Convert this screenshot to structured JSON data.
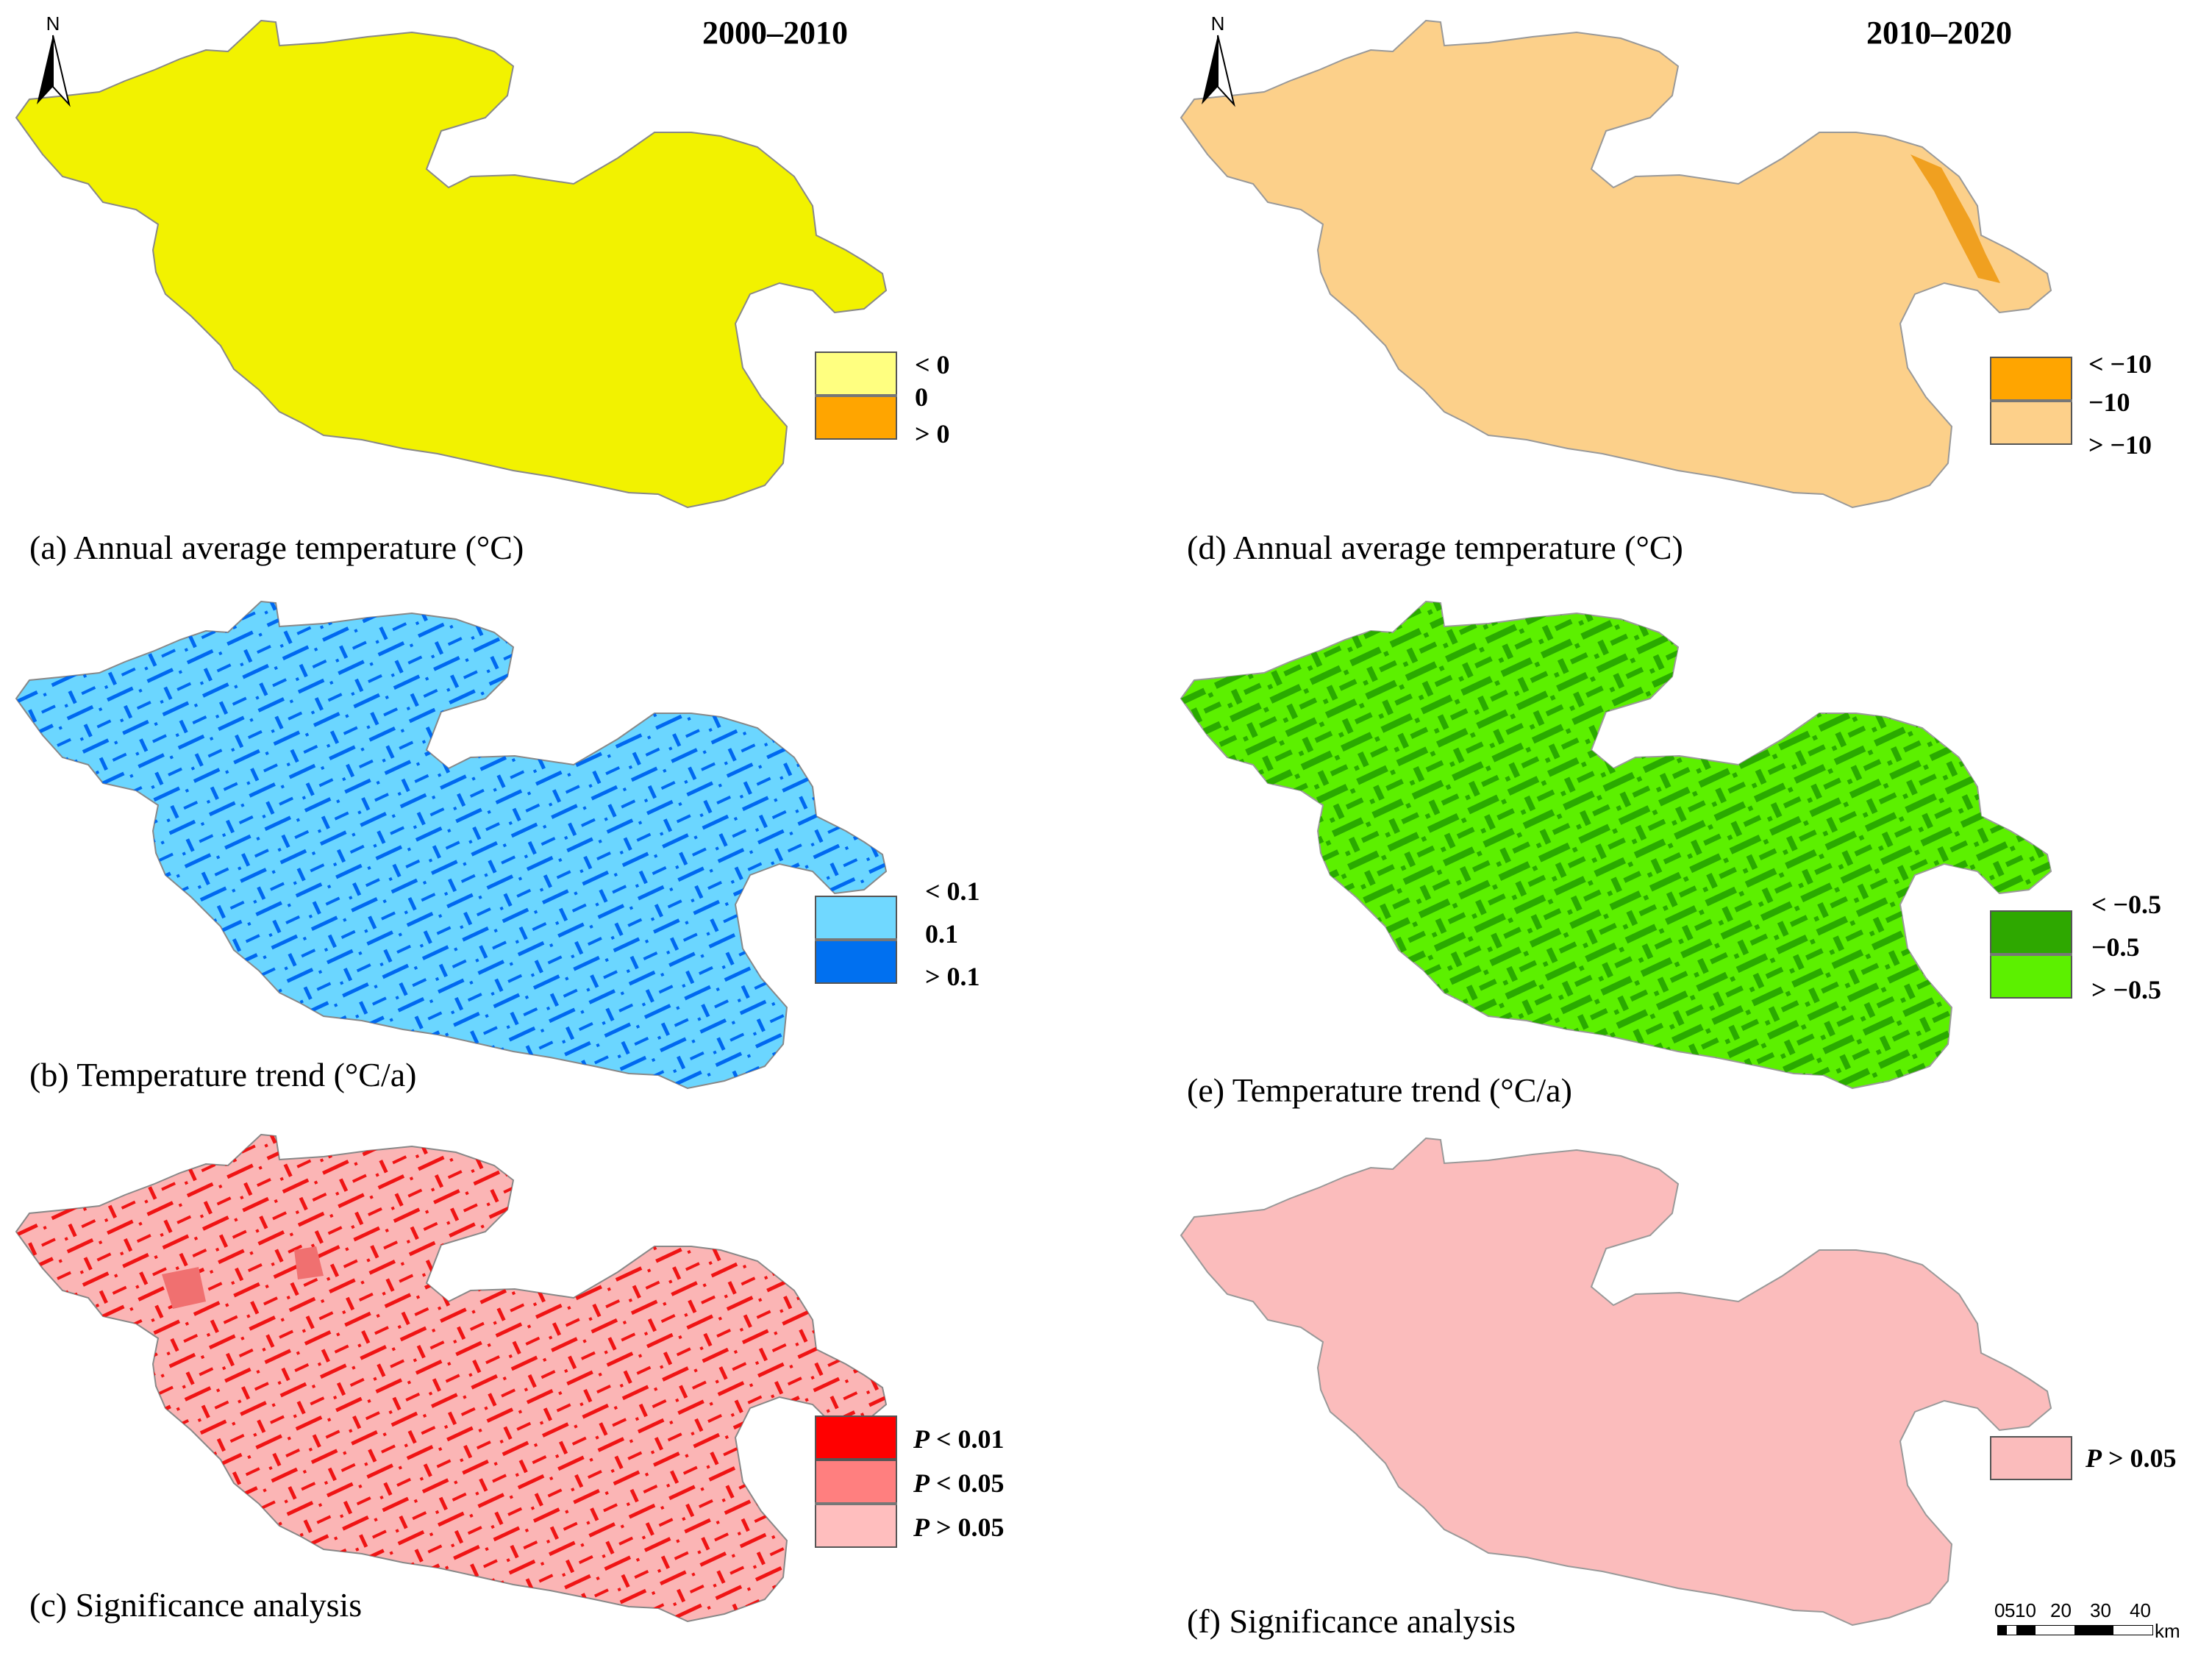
{
  "periods": {
    "left": "2000–2010",
    "right": "2010–2020"
  },
  "north_arrow": {
    "letter": "N"
  },
  "panels": [
    {
      "id": "a",
      "caption": "(a) Annual average temperature (°C)",
      "fill": "#f2f200",
      "legend": {
        "boxes": [
          "#ffff80",
          "#ffa500"
        ],
        "labels": [
          "< 0",
          "0",
          "> 0"
        ]
      }
    },
    {
      "id": "b",
      "caption": "(b) Temperature trend (°C/a)",
      "fill": "#6bd6ff",
      "pattern_fill": "#0068f0",
      "legend": {
        "boxes": [
          "#70d8ff",
          "#0070f0"
        ],
        "labels": [
          "< 0.1",
          "0.1",
          "> 0.1"
        ]
      }
    },
    {
      "id": "c",
      "caption": "(c) Significance analysis",
      "fill": "#fbb5b5",
      "pattern_fill": "#ef1414",
      "legend": {
        "boxes": [
          "#ff0000",
          "#ff7f7f",
          "#ffbebe"
        ],
        "labels": [
          "< 0.01",
          "< 0.05",
          "> 0.05"
        ],
        "label_prefix": "P"
      }
    },
    {
      "id": "d",
      "caption": "(d) Annual average temperature (°C)",
      "fill": "#fcd08a",
      "legend": {
        "boxes": [
          "#ffa500",
          "#fdd08a"
        ],
        "labels": [
          "< −10",
          "−10",
          "> −10"
        ]
      }
    },
    {
      "id": "e",
      "caption": "(e) Temperature trend (°C/a)",
      "fill": "#5cf000",
      "pattern_fill": "#2aaa00",
      "legend": {
        "boxes": [
          "#2ea800",
          "#5cf000"
        ],
        "labels": [
          "< −0.5",
          "−0.5",
          "> −0.5"
        ]
      }
    },
    {
      "id": "f",
      "caption": "(f) Significance analysis",
      "fill": "#fbbcbc",
      "legend": {
        "boxes": [
          "#fbbcbc"
        ],
        "labels": [
          "> 0.05"
        ],
        "label_prefix": "P"
      }
    }
  ],
  "scale_bar": {
    "ticks": [
      "0",
      "5",
      "10",
      "20",
      "30",
      "40"
    ],
    "unit": "km"
  }
}
